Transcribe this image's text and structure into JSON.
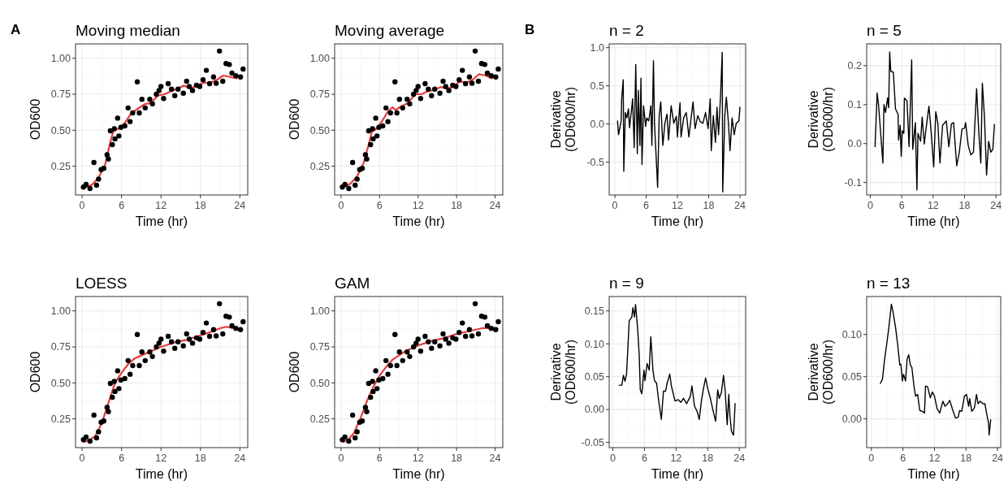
{
  "chart_data": [
    {
      "type": "scatter",
      "title": "Moving median",
      "xlabel": "Time (hr)",
      "ylabel": "OD600",
      "annotations": [
        "A"
      ],
      "xlim": [
        -1.0,
        25.2
      ],
      "ylim": [
        0.05,
        1.1
      ],
      "xticks": [
        0,
        6,
        12,
        18,
        24
      ],
      "yticks": [
        {
          "value": 0.25,
          "label": "0.25"
        },
        {
          "value": 0.5,
          "label": "0.50"
        },
        {
          "value": 0.75,
          "label": "0.75"
        },
        {
          "value": 1.0,
          "label": "1.00"
        }
      ],
      "grid": true,
      "line_style": "solid",
      "series": [
        {
          "marker": "circle",
          "color": "#000000",
          "x": [
            0.2,
            0.6,
            1.2,
            1.8,
            2.2,
            2.5,
            2.9,
            3.3,
            3.8,
            4.0,
            4.3,
            4.6,
            4.9,
            5.0,
            5.4,
            5.6,
            5.9,
            6.5,
            7.0,
            7.3,
            7.7,
            8.4,
            8.7,
            9.1,
            9.6,
            10.3,
            10.7,
            11.3,
            11.7,
            12.0,
            12.4,
            13.1,
            13.6,
            14.1,
            14.6,
            15.4,
            15.9,
            16.3,
            16.8,
            17.4,
            17.9,
            18.4,
            18.9,
            19.4,
            20.0,
            20.4,
            20.9,
            21.4,
            21.9,
            22.4,
            22.8,
            23.4,
            24.1,
            24.5
          ],
          "values": [
            0.105,
            0.123,
            0.095,
            0.276,
            0.118,
            0.16,
            0.226,
            0.235,
            0.33,
            0.3,
            0.496,
            0.4,
            0.51,
            0.44,
            0.584,
            0.46,
            0.52,
            0.53,
            0.655,
            0.56,
            0.62,
            0.836,
            0.62,
            0.715,
            0.655,
            0.715,
            0.683,
            0.75,
            0.776,
            0.804,
            0.72,
            0.823,
            0.785,
            0.74,
            0.785,
            0.757,
            0.84,
            0.804,
            0.776,
            0.813,
            0.804,
            0.85,
            0.916,
            0.823,
            0.87,
            0.826,
            1.05,
            0.84,
            0.963,
            0.957,
            0.897,
            0.879,
            0.87,
            0.925
          ]
        },
        {
          "type": "line",
          "color": "#e31a1c",
          "x": [
            0.3,
            1.5,
            2.5,
            3.5,
            4.3,
            4.8,
            5.5,
            6.5,
            7.5,
            8.5,
            9.5,
            10.5,
            11.5,
            12.5,
            13.5,
            14.5,
            15.5,
            16.5,
            17.5,
            18.5,
            19.5,
            20.5,
            21.5,
            22.5,
            23.5
          ],
          "values": [
            0.1,
            0.12,
            0.17,
            0.26,
            0.42,
            0.5,
            0.51,
            0.55,
            0.62,
            0.65,
            0.68,
            0.69,
            0.74,
            0.75,
            0.77,
            0.79,
            0.81,
            0.79,
            0.81,
            0.83,
            0.83,
            0.85,
            0.88,
            0.87,
            0.86
          ]
        }
      ]
    },
    {
      "type": "scatter",
      "title": "Moving average",
      "xlabel": "Time (hr)",
      "ylabel": "OD600",
      "xlim": [
        -1.0,
        25.2
      ],
      "ylim": [
        0.05,
        1.1
      ],
      "xticks": [
        0,
        6,
        12,
        18,
        24
      ],
      "yticks": [
        {
          "value": 0.25,
          "label": "0.25"
        },
        {
          "value": 0.5,
          "label": "0.50"
        },
        {
          "value": 0.75,
          "label": "0.75"
        },
        {
          "value": 1.0,
          "label": "1.00"
        }
      ],
      "grid": true,
      "line_style": "solid",
      "series": [
        {
          "marker": "circle",
          "color": "#000000",
          "x": [
            0.2,
            0.6,
            1.2,
            1.8,
            2.2,
            2.5,
            2.9,
            3.3,
            3.8,
            4.0,
            4.3,
            4.6,
            4.9,
            5.0,
            5.4,
            5.6,
            5.9,
            6.5,
            7.0,
            7.3,
            7.7,
            8.4,
            8.7,
            9.1,
            9.6,
            10.3,
            10.7,
            11.3,
            11.7,
            12.0,
            12.4,
            13.1,
            13.6,
            14.1,
            14.6,
            15.4,
            15.9,
            16.3,
            16.8,
            17.4,
            17.9,
            18.4,
            18.9,
            19.4,
            20.0,
            20.4,
            20.9,
            21.4,
            21.9,
            22.4,
            22.8,
            23.4,
            24.1,
            24.5
          ],
          "values": [
            0.105,
            0.123,
            0.095,
            0.276,
            0.118,
            0.16,
            0.226,
            0.235,
            0.33,
            0.3,
            0.496,
            0.4,
            0.51,
            0.44,
            0.584,
            0.46,
            0.52,
            0.53,
            0.655,
            0.56,
            0.62,
            0.836,
            0.62,
            0.715,
            0.655,
            0.715,
            0.683,
            0.75,
            0.776,
            0.804,
            0.72,
            0.823,
            0.785,
            0.74,
            0.785,
            0.757,
            0.84,
            0.804,
            0.776,
            0.813,
            0.804,
            0.85,
            0.916,
            0.823,
            0.87,
            0.826,
            1.05,
            0.84,
            0.963,
            0.957,
            0.897,
            0.879,
            0.87,
            0.925
          ]
        },
        {
          "type": "line",
          "color": "#e31a1c",
          "x": [
            0.3,
            1.5,
            2.5,
            3.5,
            4.3,
            4.8,
            5.5,
            6.5,
            7.3,
            8.0,
            8.5,
            9.5,
            10.5,
            11.5,
            12.5,
            13.5,
            14.5,
            15.5,
            16.5,
            17.5,
            18.5,
            19.5,
            20.5,
            21.5,
            22.5,
            23.5
          ],
          "values": [
            0.1,
            0.13,
            0.18,
            0.27,
            0.4,
            0.49,
            0.51,
            0.57,
            0.63,
            0.66,
            0.64,
            0.67,
            0.69,
            0.75,
            0.75,
            0.77,
            0.78,
            0.8,
            0.79,
            0.8,
            0.84,
            0.83,
            0.85,
            0.89,
            0.88,
            0.86
          ]
        }
      ]
    },
    {
      "type": "line",
      "title": "n = 2",
      "xlabel": "Time (hr)",
      "ylabel": "Derivative\n(OD600/hr)",
      "annotations": [
        "B"
      ],
      "xlim": [
        -1.1,
        25.1
      ],
      "ylim": [
        -0.93,
        1.05
      ],
      "xticks": [
        0,
        6,
        12,
        18,
        24
      ],
      "yticks": [
        {
          "value": -0.5,
          "label": "-0.5"
        },
        {
          "value": 0,
          "label": "0.0"
        },
        {
          "value": 0.5,
          "label": "0.5"
        },
        {
          "value": 1.0,
          "label": "1.0"
        }
      ],
      "grid": true,
      "line_style": "solid",
      "series": [
        {
          "color": "#000000",
          "x": [
            0.5,
            0.7,
            1.2,
            1.3,
            1.6,
            1.7,
            2.0,
            2.3,
            2.6,
            2.8,
            3.2,
            3.4,
            3.7,
            4.0,
            4.3,
            4.5,
            4.8,
            5.0,
            5.2,
            5.5,
            5.9,
            6.1,
            6.5,
            6.9,
            7.1,
            7.4,
            7.6,
            8.2,
            8.5,
            8.8,
            9.2,
            9.6,
            10.0,
            10.3,
            10.8,
            11.3,
            11.8,
            12.0,
            12.5,
            12.7,
            13.2,
            13.7,
            14.2,
            15.0,
            15.4,
            15.9,
            16.4,
            16.9,
            17.4,
            17.9,
            18.3,
            18.5,
            18.9,
            19.3,
            19.6,
            19.9,
            20.3,
            20.6,
            20.7,
            21.1,
            21.4,
            21.8,
            22.1,
            22.5,
            22.9,
            23.3,
            23.8,
            24.0
          ],
          "values": [
            0.04,
            -0.14,
            0.04,
            0.33,
            0.58,
            -0.62,
            0.15,
            0.08,
            0.2,
            -0.05,
            0.19,
            0.33,
            -0.31,
            0.78,
            -0.39,
            0.44,
            -0.28,
            0.6,
            -0.53,
            0.24,
            -0.03,
            0.08,
            0.04,
            0.24,
            -0.28,
            0.83,
            0.01,
            -0.83,
            0.11,
            0.29,
            -0.28,
            0.01,
            0.13,
            -0.21,
            0.24,
            0.01,
            0.1,
            -0.17,
            0.28,
            -0.17,
            0.08,
            0.15,
            -0.17,
            0.29,
            -0.06,
            0.11,
            0.03,
            0.01,
            0.15,
            -0.06,
            0.33,
            -0.35,
            0.11,
            -0.24,
            0.22,
            -0.14,
            0.4,
            0.94,
            -0.89,
            0.11,
            0.35,
            0.01,
            -0.35,
            0.08,
            -0.14,
            0.01,
            0.04,
            0.22
          ]
        }
      ]
    },
    {
      "type": "line",
      "title": "n = 5",
      "xlabel": "Time (hr)",
      "ylabel": "Derivative\n(OD600/hr)",
      "xlim": [
        -0.7,
        24.9
      ],
      "ylim": [
        -0.132,
        0.256
      ],
      "xticks": [
        0,
        6,
        12,
        18,
        24
      ],
      "yticks": [
        {
          "value": -0.1,
          "label": "-0.1"
        },
        {
          "value": 0,
          "label": "0.0"
        },
        {
          "value": 0.1,
          "label": "0.1"
        },
        {
          "value": 0.2,
          "label": "0.2"
        }
      ],
      "grid": true,
      "line_style": "solid",
      "series": [
        {
          "color": "#000000",
          "x": [
            0.9,
            1.1,
            1.3,
            1.6,
            1.9,
            2.4,
            2.6,
            2.9,
            3.3,
            3.5,
            3.7,
            3.9,
            4.4,
            4.8,
            5.3,
            5.4,
            5.7,
            5.9,
            6.1,
            6.4,
            6.5,
            7.0,
            7.4,
            7.9,
            8.1,
            8.6,
            8.9,
            9.1,
            9.6,
            9.9,
            10.3,
            10.7,
            11.2,
            11.6,
            12.1,
            12.5,
            12.9,
            13.3,
            13.8,
            14.5,
            15.0,
            15.5,
            15.9,
            16.5,
            17.0,
            17.5,
            18.0,
            18.2,
            18.7,
            19.2,
            19.7,
            20.3,
            20.7,
            21.1,
            21.4,
            21.8,
            22.2,
            22.6,
            23.0,
            23.4,
            23.7
          ],
          "values": [
            -0.008,
            0.06,
            0.13,
            0.095,
            0.04,
            -0.05,
            0.1,
            0.08,
            0.117,
            0.092,
            0.235,
            0.186,
            0.183,
            0.089,
            0.075,
            0.009,
            0.047,
            -0.033,
            0.033,
            0.026,
            0.117,
            0.11,
            -0.008,
            0.215,
            -0.015,
            0.054,
            -0.119,
            0.026,
            0.006,
            0.068,
            -0.001,
            0.044,
            0.096,
            0.033,
            -0.06,
            0.082,
            0.051,
            -0.05,
            0.047,
            0.058,
            -0.008,
            0.051,
            0.054,
            -0.057,
            -0.022,
            0.037,
            0.04,
            0.054,
            -0.005,
            -0.029,
            -0.022,
            0.141,
            0.033,
            -0.05,
            0.155,
            0.068,
            -0.081,
            0.006,
            -0.022,
            -0.015,
            0.049
          ]
        }
      ]
    },
    {
      "type": "scatter",
      "title": "LOESS",
      "xlabel": "Time (hr)",
      "ylabel": "OD600",
      "xlim": [
        -1.0,
        25.2
      ],
      "ylim": [
        0.05,
        1.1
      ],
      "xticks": [
        0,
        6,
        12,
        18,
        24
      ],
      "yticks": [
        {
          "value": 0.25,
          "label": "0.25"
        },
        {
          "value": 0.5,
          "label": "0.50"
        },
        {
          "value": 0.75,
          "label": "0.75"
        },
        {
          "value": 1.0,
          "label": "1.00"
        }
      ],
      "grid": true,
      "line_style": "solid",
      "series": [
        {
          "marker": "circle",
          "color": "#000000",
          "x": [
            0.2,
            0.6,
            1.2,
            1.8,
            2.2,
            2.5,
            2.9,
            3.3,
            3.8,
            4.0,
            4.3,
            4.6,
            4.9,
            5.0,
            5.4,
            5.6,
            5.9,
            6.5,
            7.0,
            7.3,
            7.7,
            8.4,
            8.7,
            9.1,
            9.6,
            10.3,
            10.7,
            11.3,
            11.7,
            12.0,
            12.4,
            13.1,
            13.6,
            14.1,
            14.6,
            15.4,
            15.9,
            16.3,
            16.8,
            17.4,
            17.9,
            18.4,
            18.9,
            19.4,
            20.0,
            20.4,
            20.9,
            21.4,
            21.9,
            22.4,
            22.8,
            23.4,
            24.1,
            24.5
          ],
          "values": [
            0.105,
            0.123,
            0.095,
            0.276,
            0.118,
            0.16,
            0.226,
            0.235,
            0.33,
            0.3,
            0.496,
            0.4,
            0.51,
            0.44,
            0.584,
            0.46,
            0.52,
            0.53,
            0.655,
            0.56,
            0.62,
            0.836,
            0.62,
            0.715,
            0.655,
            0.715,
            0.683,
            0.75,
            0.776,
            0.804,
            0.72,
            0.823,
            0.785,
            0.74,
            0.785,
            0.757,
            0.84,
            0.804,
            0.776,
            0.813,
            0.804,
            0.85,
            0.916,
            0.823,
            0.87,
            0.826,
            1.05,
            0.84,
            0.963,
            0.957,
            0.897,
            0.879,
            0.87,
            0.925
          ]
        },
        {
          "type": "line",
          "color": "#e31a1c",
          "x": [
            0.3,
            1,
            2,
            3,
            4,
            5,
            6,
            7,
            8,
            9,
            10,
            12,
            14,
            16,
            18,
            20,
            21,
            22,
            23,
            24
          ],
          "values": [
            0.09,
            0.1,
            0.13,
            0.22,
            0.36,
            0.5,
            0.57,
            0.63,
            0.67,
            0.69,
            0.71,
            0.75,
            0.78,
            0.8,
            0.83,
            0.86,
            0.88,
            0.89,
            0.88,
            0.87
          ]
        }
      ]
    },
    {
      "type": "scatter",
      "title": "GAM",
      "xlabel": "Time (hr)",
      "ylabel": "OD600",
      "xlim": [
        -1.0,
        25.2
      ],
      "ylim": [
        0.05,
        1.1
      ],
      "xticks": [
        0,
        6,
        12,
        18,
        24
      ],
      "yticks": [
        {
          "value": 0.25,
          "label": "0.25"
        },
        {
          "value": 0.5,
          "label": "0.50"
        },
        {
          "value": 0.75,
          "label": "0.75"
        },
        {
          "value": 1.0,
          "label": "1.00"
        }
      ],
      "grid": true,
      "line_style": "solid",
      "series": [
        {
          "marker": "circle",
          "color": "#000000",
          "x": [
            0.2,
            0.6,
            1.2,
            1.8,
            2.2,
            2.5,
            2.9,
            3.3,
            3.8,
            4.0,
            4.3,
            4.6,
            4.9,
            5.0,
            5.4,
            5.6,
            5.9,
            6.5,
            7.0,
            7.3,
            7.7,
            8.4,
            8.7,
            9.1,
            9.6,
            10.3,
            10.7,
            11.3,
            11.7,
            12.0,
            12.4,
            13.1,
            13.6,
            14.1,
            14.6,
            15.4,
            15.9,
            16.3,
            16.8,
            17.4,
            17.9,
            18.4,
            18.9,
            19.4,
            20.0,
            20.4,
            20.9,
            21.4,
            21.9,
            22.4,
            22.8,
            23.4,
            24.1,
            24.5
          ],
          "values": [
            0.105,
            0.123,
            0.095,
            0.276,
            0.118,
            0.16,
            0.226,
            0.235,
            0.33,
            0.3,
            0.496,
            0.4,
            0.51,
            0.44,
            0.584,
            0.46,
            0.52,
            0.53,
            0.655,
            0.56,
            0.62,
            0.836,
            0.62,
            0.715,
            0.655,
            0.715,
            0.683,
            0.75,
            0.776,
            0.804,
            0.72,
            0.823,
            0.785,
            0.74,
            0.785,
            0.757,
            0.84,
            0.804,
            0.776,
            0.813,
            0.804,
            0.85,
            0.916,
            0.823,
            0.87,
            0.826,
            1.05,
            0.84,
            0.963,
            0.957,
            0.897,
            0.879,
            0.87,
            0.925
          ]
        },
        {
          "type": "line",
          "color": "#e31a1c",
          "x": [
            0.3,
            1,
            2,
            3,
            4,
            5,
            6,
            7,
            8,
            10,
            12,
            14,
            16,
            18,
            20,
            22,
            24
          ],
          "values": [
            0.09,
            0.1,
            0.15,
            0.25,
            0.37,
            0.47,
            0.55,
            0.61,
            0.66,
            0.72,
            0.76,
            0.79,
            0.81,
            0.84,
            0.86,
            0.88,
            0.88
          ]
        }
      ]
    },
    {
      "type": "line",
      "title": "n = 9",
      "xlabel": "Time (hr)",
      "ylabel": "Derivative\n(OD600/hr)",
      "xlim": [
        -0.7,
        25.2
      ],
      "ylim": [
        -0.058,
        0.172
      ],
      "xticks": [
        0,
        6,
        12,
        18,
        24
      ],
      "yticks": [
        {
          "value": -0.05,
          "label": "-0.05"
        },
        {
          "value": 0,
          "label": "0.00"
        },
        {
          "value": 0.05,
          "label": "0.05"
        },
        {
          "value": 0.1,
          "label": "0.10"
        },
        {
          "value": 0.15,
          "label": "0.15"
        }
      ],
      "grid": true,
      "line_style": "solid",
      "series": [
        {
          "color": "#000000",
          "x": [
            1.2,
            1.7,
            2.0,
            2.3,
            2.6,
            3.1,
            3.6,
            3.8,
            4.1,
            4.3,
            4.7,
            5.0,
            5.2,
            5.5,
            5.9,
            6.1,
            6.5,
            6.9,
            7.2,
            7.6,
            7.9,
            8.3,
            8.7,
            9.2,
            9.6,
            10.0,
            10.3,
            10.8,
            11.1,
            11.8,
            12.4,
            12.9,
            13.4,
            14.0,
            14.7,
            15.0,
            15.5,
            16.0,
            16.4,
            16.8,
            17.2,
            17.6,
            18.0,
            18.5,
            19.0,
            19.5,
            19.9,
            20.2,
            20.6,
            21.0,
            21.3,
            21.7,
            22.0,
            22.2,
            22.5,
            22.9,
            23.2
          ],
          "values": [
            0.037,
            0.037,
            0.052,
            0.043,
            0.054,
            0.135,
            0.141,
            0.155,
            0.141,
            0.16,
            0.123,
            0.083,
            0.03,
            0.024,
            0.06,
            0.044,
            0.07,
            0.06,
            0.111,
            0.06,
            0.044,
            0.04,
            0.013,
            -0.015,
            0.028,
            0.028,
            0.04,
            0.054,
            0.036,
            0.013,
            0.015,
            0.011,
            0.017,
            0.009,
            0.02,
            0.036,
            0.005,
            -0.003,
            -0.015,
            0.013,
            0.032,
            0.048,
            0.032,
            0.017,
            -0.001,
            -0.018,
            0.03,
            0.017,
            0.026,
            0.052,
            0.03,
            -0.023,
            0.023,
            -0.007,
            -0.033,
            -0.039,
            0.009
          ]
        }
      ]
    },
    {
      "type": "line",
      "title": "n = 13",
      "xlabel": "Time (hr)",
      "ylabel": "Derivative\n(OD600/hr)",
      "xlim": [
        -0.9,
        24.6
      ],
      "ylim": [
        -0.034,
        0.145
      ],
      "xticks": [
        0,
        6,
        12,
        18,
        24
      ],
      "yticks": [
        {
          "value": 0,
          "label": "0.00"
        },
        {
          "value": 0.05,
          "label": "0.05"
        },
        {
          "value": 0.1,
          "label": "0.10"
        }
      ],
      "grid": true,
      "line_style": "solid",
      "series": [
        {
          "color": "#000000",
          "x": [
            1.7,
            2.1,
            2.5,
            2.9,
            3.3,
            3.8,
            4.1,
            4.6,
            5.0,
            5.4,
            5.6,
            5.9,
            6.1,
            6.5,
            6.8,
            7.1,
            7.4,
            7.7,
            8.1,
            8.4,
            8.8,
            9.2,
            9.7,
            10.1,
            10.3,
            10.7,
            11.2,
            11.6,
            12.0,
            12.5,
            13.0,
            13.6,
            14.0,
            14.5,
            14.9,
            15.4,
            16.0,
            16.5,
            16.8,
            17.2,
            17.7,
            18.1,
            18.5,
            18.7,
            19.1,
            19.6,
            20.0,
            20.3,
            20.7,
            21.2,
            21.6,
            21.9,
            22.3,
            22.4,
            22.7
          ],
          "values": [
            0.042,
            0.047,
            0.07,
            0.088,
            0.107,
            0.136,
            0.127,
            0.108,
            0.088,
            0.064,
            0.065,
            0.045,
            0.053,
            0.045,
            0.071,
            0.076,
            0.064,
            0.061,
            0.039,
            0.027,
            0.029,
            0.01,
            0.009,
            0.007,
            0.039,
            0.038,
            0.025,
            0.032,
            0.027,
            0.012,
            0.007,
            0.021,
            0.015,
            0.018,
            0.022,
            0.012,
            0.001,
            0.002,
            0.01,
            0.009,
            0.027,
            0.029,
            0.015,
            0.024,
            0.009,
            0.013,
            0.029,
            0.018,
            0.021,
            0.018,
            0.018,
            0.007,
            -0.005,
            -0.019,
            -0.001
          ]
        }
      ]
    }
  ]
}
